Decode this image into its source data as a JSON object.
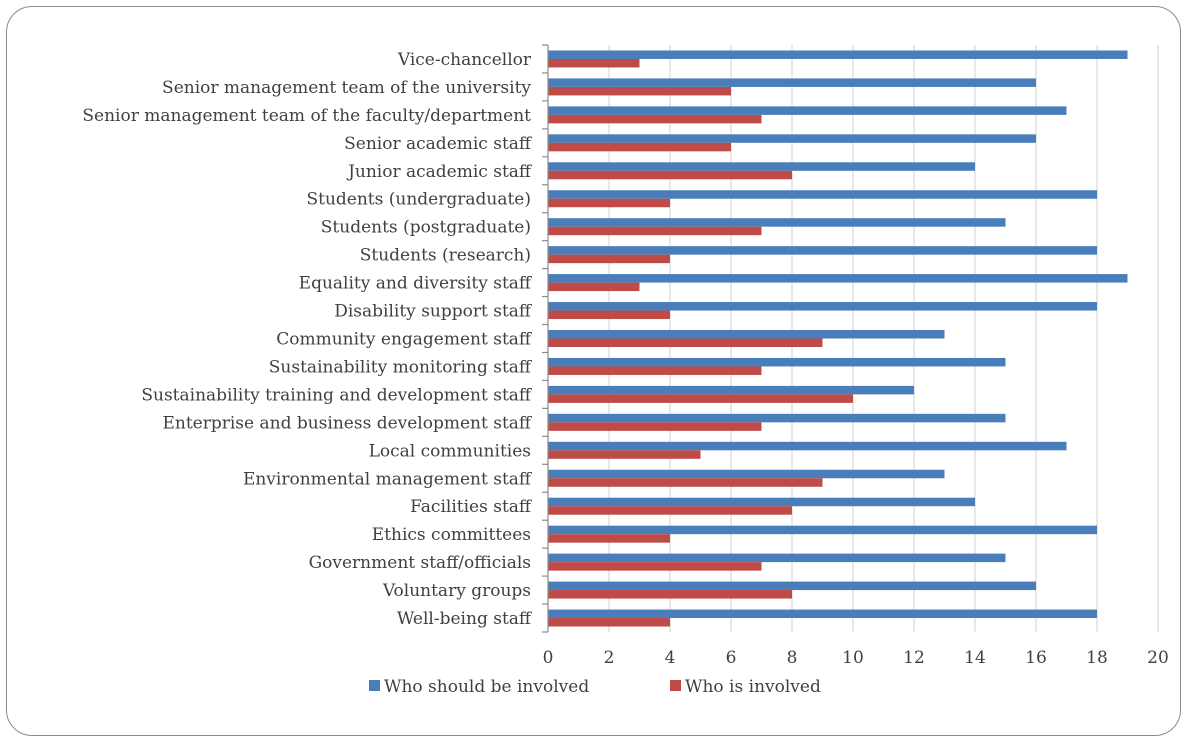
{
  "chart_data": {
    "type": "bar",
    "orientation": "horizontal",
    "title": "",
    "xlabel": "",
    "ylabel": "",
    "xlim": [
      0,
      20
    ],
    "x_ticks": [
      "0",
      "2",
      "4",
      "6",
      "8",
      "10",
      "12",
      "14",
      "16",
      "18",
      "20"
    ],
    "grid": true,
    "legend_position": "bottom",
    "categories": [
      "Vice-chancellor",
      "Senior management team of the university",
      "Senior management team of the faculty/department",
      "Senior academic staff",
      "Junior academic staff",
      "Students (undergraduate)",
      "Students (postgraduate)",
      "Students (research)",
      "Equality and diversity staff",
      "Disability support staff",
      "Community engagement staff",
      "Sustainability monitoring staff",
      "Sustainability training and development staff",
      "Enterprise and business development staff",
      "Local communities",
      "Environmental management staff",
      "Facilities staff",
      "Ethics committees",
      "Government staff/officials",
      "Voluntary groups",
      "Well-being staff"
    ],
    "series": [
      {
        "name": "Who should be involved",
        "color": "#4a7ebb",
        "values": [
          19,
          16,
          17,
          16,
          14,
          18,
          15,
          18,
          19,
          18,
          13,
          15,
          12,
          15,
          17,
          13,
          14,
          18,
          15,
          16,
          18
        ]
      },
      {
        "name": "Who is involved",
        "color": "#be4b48",
        "values": [
          3,
          6,
          7,
          6,
          8,
          4,
          7,
          4,
          3,
          4,
          9,
          7,
          10,
          7,
          5,
          9,
          8,
          4,
          7,
          8,
          4
        ]
      }
    ]
  }
}
